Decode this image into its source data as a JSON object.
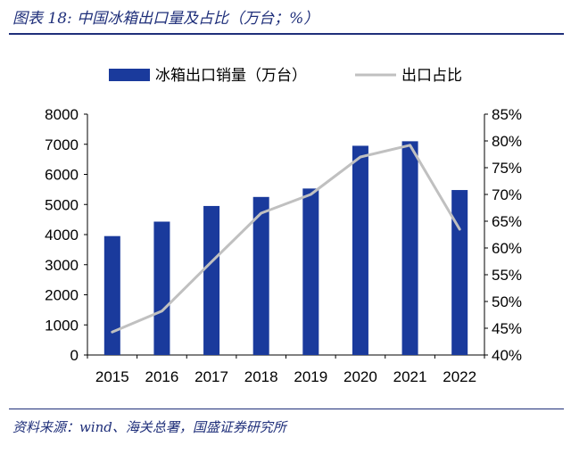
{
  "header": {
    "title": "图表 18:  中国冰箱出口量及占比（万台；%）"
  },
  "footer": {
    "source": "资料来源：wind、海关总署，国盛证券研究所"
  },
  "colors": {
    "bar": "#1a3a9c",
    "line": "#c0c0c0",
    "title": "#1f2f7a"
  },
  "chart_data": {
    "type": "bar",
    "categories": [
      "2015",
      "2016",
      "2017",
      "2018",
      "2019",
      "2020",
      "2021",
      "2022"
    ],
    "series": [
      {
        "name": "冰箱出口销量（万台）",
        "type": "bar",
        "axis": "left",
        "values": [
          3950,
          4430,
          4950,
          5250,
          5530,
          6950,
          7100,
          5480
        ]
      },
      {
        "name": "出口占比",
        "type": "line",
        "axis": "right",
        "values": [
          44.3,
          48.2,
          57.4,
          66.5,
          70.0,
          77.0,
          79.2,
          63.5
        ]
      }
    ],
    "ylim_left": [
      0,
      8000
    ],
    "yticks_left": [
      "0",
      "1000",
      "2000",
      "3000",
      "4000",
      "5000",
      "6000",
      "7000",
      "8000"
    ],
    "ylim_right": [
      40,
      85
    ],
    "yticks_right": [
      "40%",
      "45%",
      "50%",
      "55%",
      "60%",
      "65%",
      "70%",
      "75%",
      "80%",
      "85%"
    ],
    "legend_position": "top",
    "grid": false
  }
}
